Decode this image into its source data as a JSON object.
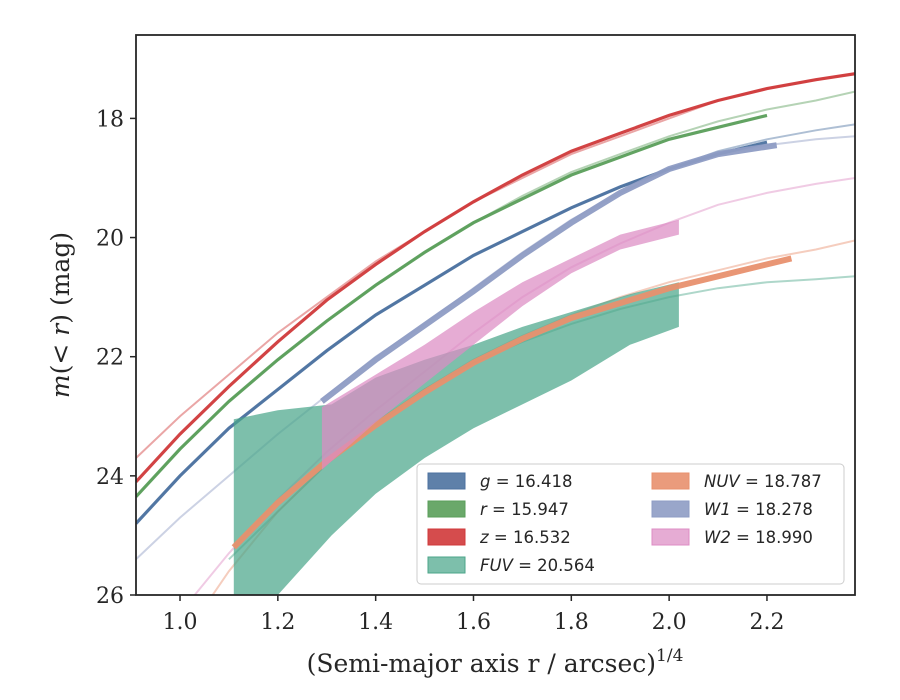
{
  "chart_data": {
    "type": "line",
    "title": "",
    "xlabel": "(Semi-major axis r / arcsec)",
    "xlabel_exponent": "1/4",
    "ylabel": "m(< r) (mag)",
    "xlim": [
      0.91,
      2.38
    ],
    "ylim": [
      26,
      16.6
    ],
    "y_inverted": true,
    "grid": false,
    "legend_position": "lower-right",
    "x_ticks": [
      1.0,
      1.2,
      1.4,
      1.6,
      1.8,
      2.0,
      2.2
    ],
    "x_tick_labels": [
      "1.0",
      "1.2",
      "1.4",
      "1.6",
      "1.8",
      "2.0",
      "2.2"
    ],
    "y_ticks": [
      18,
      20,
      22,
      24,
      26
    ],
    "y_tick_labels": [
      "18",
      "20",
      "22",
      "24",
      "26"
    ],
    "series": [
      {
        "name": "g = 16.418",
        "var": "g",
        "value": "16.418",
        "italic": false,
        "color": "#4c72a0",
        "model_x": [
          0.91,
          1.0,
          1.1,
          1.2,
          1.3,
          1.4,
          1.5,
          1.6,
          1.7,
          1.8,
          1.9,
          2.0,
          2.1,
          2.2,
          2.3,
          2.38
        ],
        "model_y": [
          24.8,
          24.0,
          23.2,
          22.55,
          21.9,
          21.3,
          20.8,
          20.3,
          19.9,
          19.5,
          19.15,
          18.85,
          18.55,
          18.35,
          18.2,
          18.1
        ],
        "data_x": [
          0.91,
          1.0,
          1.1,
          1.2,
          1.3,
          1.4,
          1.5,
          1.6,
          1.7,
          1.8,
          1.9,
          2.0,
          2.1,
          2.2
        ],
        "data_y": [
          24.8,
          24.0,
          23.2,
          22.55,
          21.9,
          21.3,
          20.8,
          20.3,
          19.9,
          19.5,
          19.15,
          18.85,
          18.6,
          18.4
        ],
        "band_lo": [],
        "band_hi": []
      },
      {
        "name": "r = 15.947",
        "var": "r",
        "value": "15.947",
        "italic": false,
        "color": "#5a9e5a",
        "model_x": [
          0.91,
          1.0,
          1.1,
          1.2,
          1.3,
          1.4,
          1.5,
          1.6,
          1.7,
          1.8,
          1.9,
          2.0,
          2.1,
          2.2,
          2.3,
          2.38
        ],
        "model_y": [
          24.35,
          23.55,
          22.75,
          22.05,
          21.4,
          20.8,
          20.25,
          19.75,
          19.3,
          18.9,
          18.6,
          18.3,
          18.05,
          17.85,
          17.7,
          17.55
        ],
        "data_x": [
          0.91,
          1.0,
          1.1,
          1.2,
          1.3,
          1.4,
          1.5,
          1.6,
          1.7,
          1.8,
          1.9,
          2.0,
          2.1,
          2.2
        ],
        "data_y": [
          24.35,
          23.55,
          22.75,
          22.05,
          21.4,
          20.8,
          20.25,
          19.75,
          19.35,
          18.95,
          18.65,
          18.35,
          18.15,
          17.95
        ],
        "band_lo": [],
        "band_hi": []
      },
      {
        "name": "z = 16.532",
        "var": "z",
        "value": "16.532",
        "italic": false,
        "color": "#d0393a",
        "model_x": [
          0.91,
          1.0,
          1.1,
          1.2,
          1.3,
          1.4,
          1.5,
          1.6,
          1.7,
          1.8,
          1.9,
          2.0,
          2.1,
          2.2,
          2.3,
          2.38
        ],
        "model_y": [
          23.7,
          23.0,
          22.3,
          21.6,
          21.0,
          20.4,
          19.9,
          19.4,
          19.0,
          18.6,
          18.3,
          18.0,
          17.7,
          17.5,
          17.35,
          17.25
        ],
        "data_x": [
          0.91,
          1.0,
          1.1,
          1.2,
          1.3,
          1.4,
          1.5,
          1.6,
          1.7,
          1.8,
          1.9,
          2.0,
          2.1,
          2.2,
          2.3,
          2.38
        ],
        "data_y": [
          24.1,
          23.3,
          22.5,
          21.75,
          21.05,
          20.45,
          19.9,
          19.4,
          18.95,
          18.55,
          18.25,
          17.95,
          17.7,
          17.5,
          17.35,
          17.25
        ],
        "band_lo": [],
        "band_hi": []
      },
      {
        "name": "FUV = 20.564",
        "var": "FUV",
        "value": "20.564",
        "italic": true,
        "color": "#4ba68a",
        "model_x": [
          1.1,
          1.2,
          1.3,
          1.4,
          1.5,
          1.6,
          1.7,
          1.8,
          1.9,
          2.0,
          2.1,
          2.2,
          2.3,
          2.38
        ],
        "model_y": [
          25.4,
          24.6,
          23.8,
          23.1,
          22.55,
          22.1,
          21.75,
          21.45,
          21.2,
          21.0,
          20.85,
          20.75,
          20.7,
          20.65
        ],
        "data_x": [
          1.11,
          1.2,
          1.31,
          1.4,
          1.5,
          1.6,
          1.7,
          1.8,
          1.92,
          2.02
        ],
        "band_lo": [
          26.5,
          26.0,
          25.0,
          24.3,
          23.7,
          23.2,
          22.8,
          22.4,
          21.8,
          21.5
        ],
        "band_hi": [
          23.05,
          22.9,
          22.8,
          22.35,
          22.05,
          21.8,
          21.5,
          21.25,
          20.95,
          20.75
        ]
      },
      {
        "name": "NUV = 18.787",
        "var": "NUV",
        "value": "18.787",
        "italic": true,
        "color": "#e8906e",
        "model_x": [
          0.91,
          1.0,
          1.1,
          1.2,
          1.3,
          1.4,
          1.5,
          1.6,
          1.7,
          1.8,
          1.9,
          2.0,
          2.1,
          2.2,
          2.3,
          2.38
        ],
        "model_y": [
          27.8,
          26.8,
          25.6,
          24.6,
          23.8,
          23.15,
          22.55,
          22.05,
          21.65,
          21.3,
          21.0,
          20.75,
          20.55,
          20.35,
          20.2,
          20.05
        ],
        "data_x": [
          1.11,
          1.2,
          1.3,
          1.4,
          1.5,
          1.6,
          1.7,
          1.8,
          1.9,
          2.0,
          2.1,
          2.25
        ],
        "data_y": [
          25.2,
          24.45,
          23.75,
          23.15,
          22.6,
          22.1,
          21.7,
          21.35,
          21.1,
          20.85,
          20.65,
          20.35
        ],
        "band_lo": [],
        "band_hi": []
      },
      {
        "name": "W1 = 18.278",
        "var": "W1",
        "value": "18.278",
        "italic": true,
        "color": "#8e9cc4",
        "model_x": [
          0.91,
          1.0,
          1.1,
          1.2,
          1.3,
          1.4,
          1.5,
          1.6,
          1.7,
          1.8,
          1.9,
          2.0,
          2.1,
          2.2,
          2.3,
          2.38
        ],
        "model_y": [
          25.4,
          24.7,
          24.0,
          23.3,
          22.65,
          22.0,
          21.45,
          20.85,
          20.25,
          19.7,
          19.25,
          18.85,
          18.6,
          18.45,
          18.35,
          18.3
        ],
        "data_x": [
          1.29,
          1.4,
          1.53,
          1.6,
          1.7,
          1.8,
          1.9,
          2.0,
          2.1,
          2.22
        ],
        "data_y": [
          22.75,
          22.05,
          21.3,
          20.9,
          20.3,
          19.75,
          19.25,
          18.85,
          18.6,
          18.45
        ],
        "band_lo": [],
        "band_hi": []
      },
      {
        "name": "W2 = 18.990",
        "var": "W2",
        "value": "18.990",
        "italic": true,
        "color": "#dd8cc4",
        "model_x": [
          0.91,
          1.0,
          1.1,
          1.2,
          1.3,
          1.4,
          1.5,
          1.6,
          1.7,
          1.8,
          1.9,
          2.0,
          2.1,
          2.2,
          2.3,
          2.38
        ],
        "model_y": [
          27.2,
          26.3,
          25.3,
          24.4,
          23.6,
          22.9,
          22.25,
          21.6,
          21.0,
          20.5,
          20.1,
          19.75,
          19.45,
          19.25,
          19.1,
          19.0
        ],
        "data_x": [
          1.29,
          1.4,
          1.5,
          1.6,
          1.7,
          1.8,
          1.9,
          2.02
        ],
        "band_lo": [
          23.9,
          23.1,
          22.45,
          21.8,
          21.15,
          20.6,
          20.2,
          19.95
        ],
        "band_hi": [
          22.85,
          22.3,
          21.8,
          21.25,
          20.75,
          20.35,
          19.95,
          19.7
        ]
      }
    ]
  }
}
